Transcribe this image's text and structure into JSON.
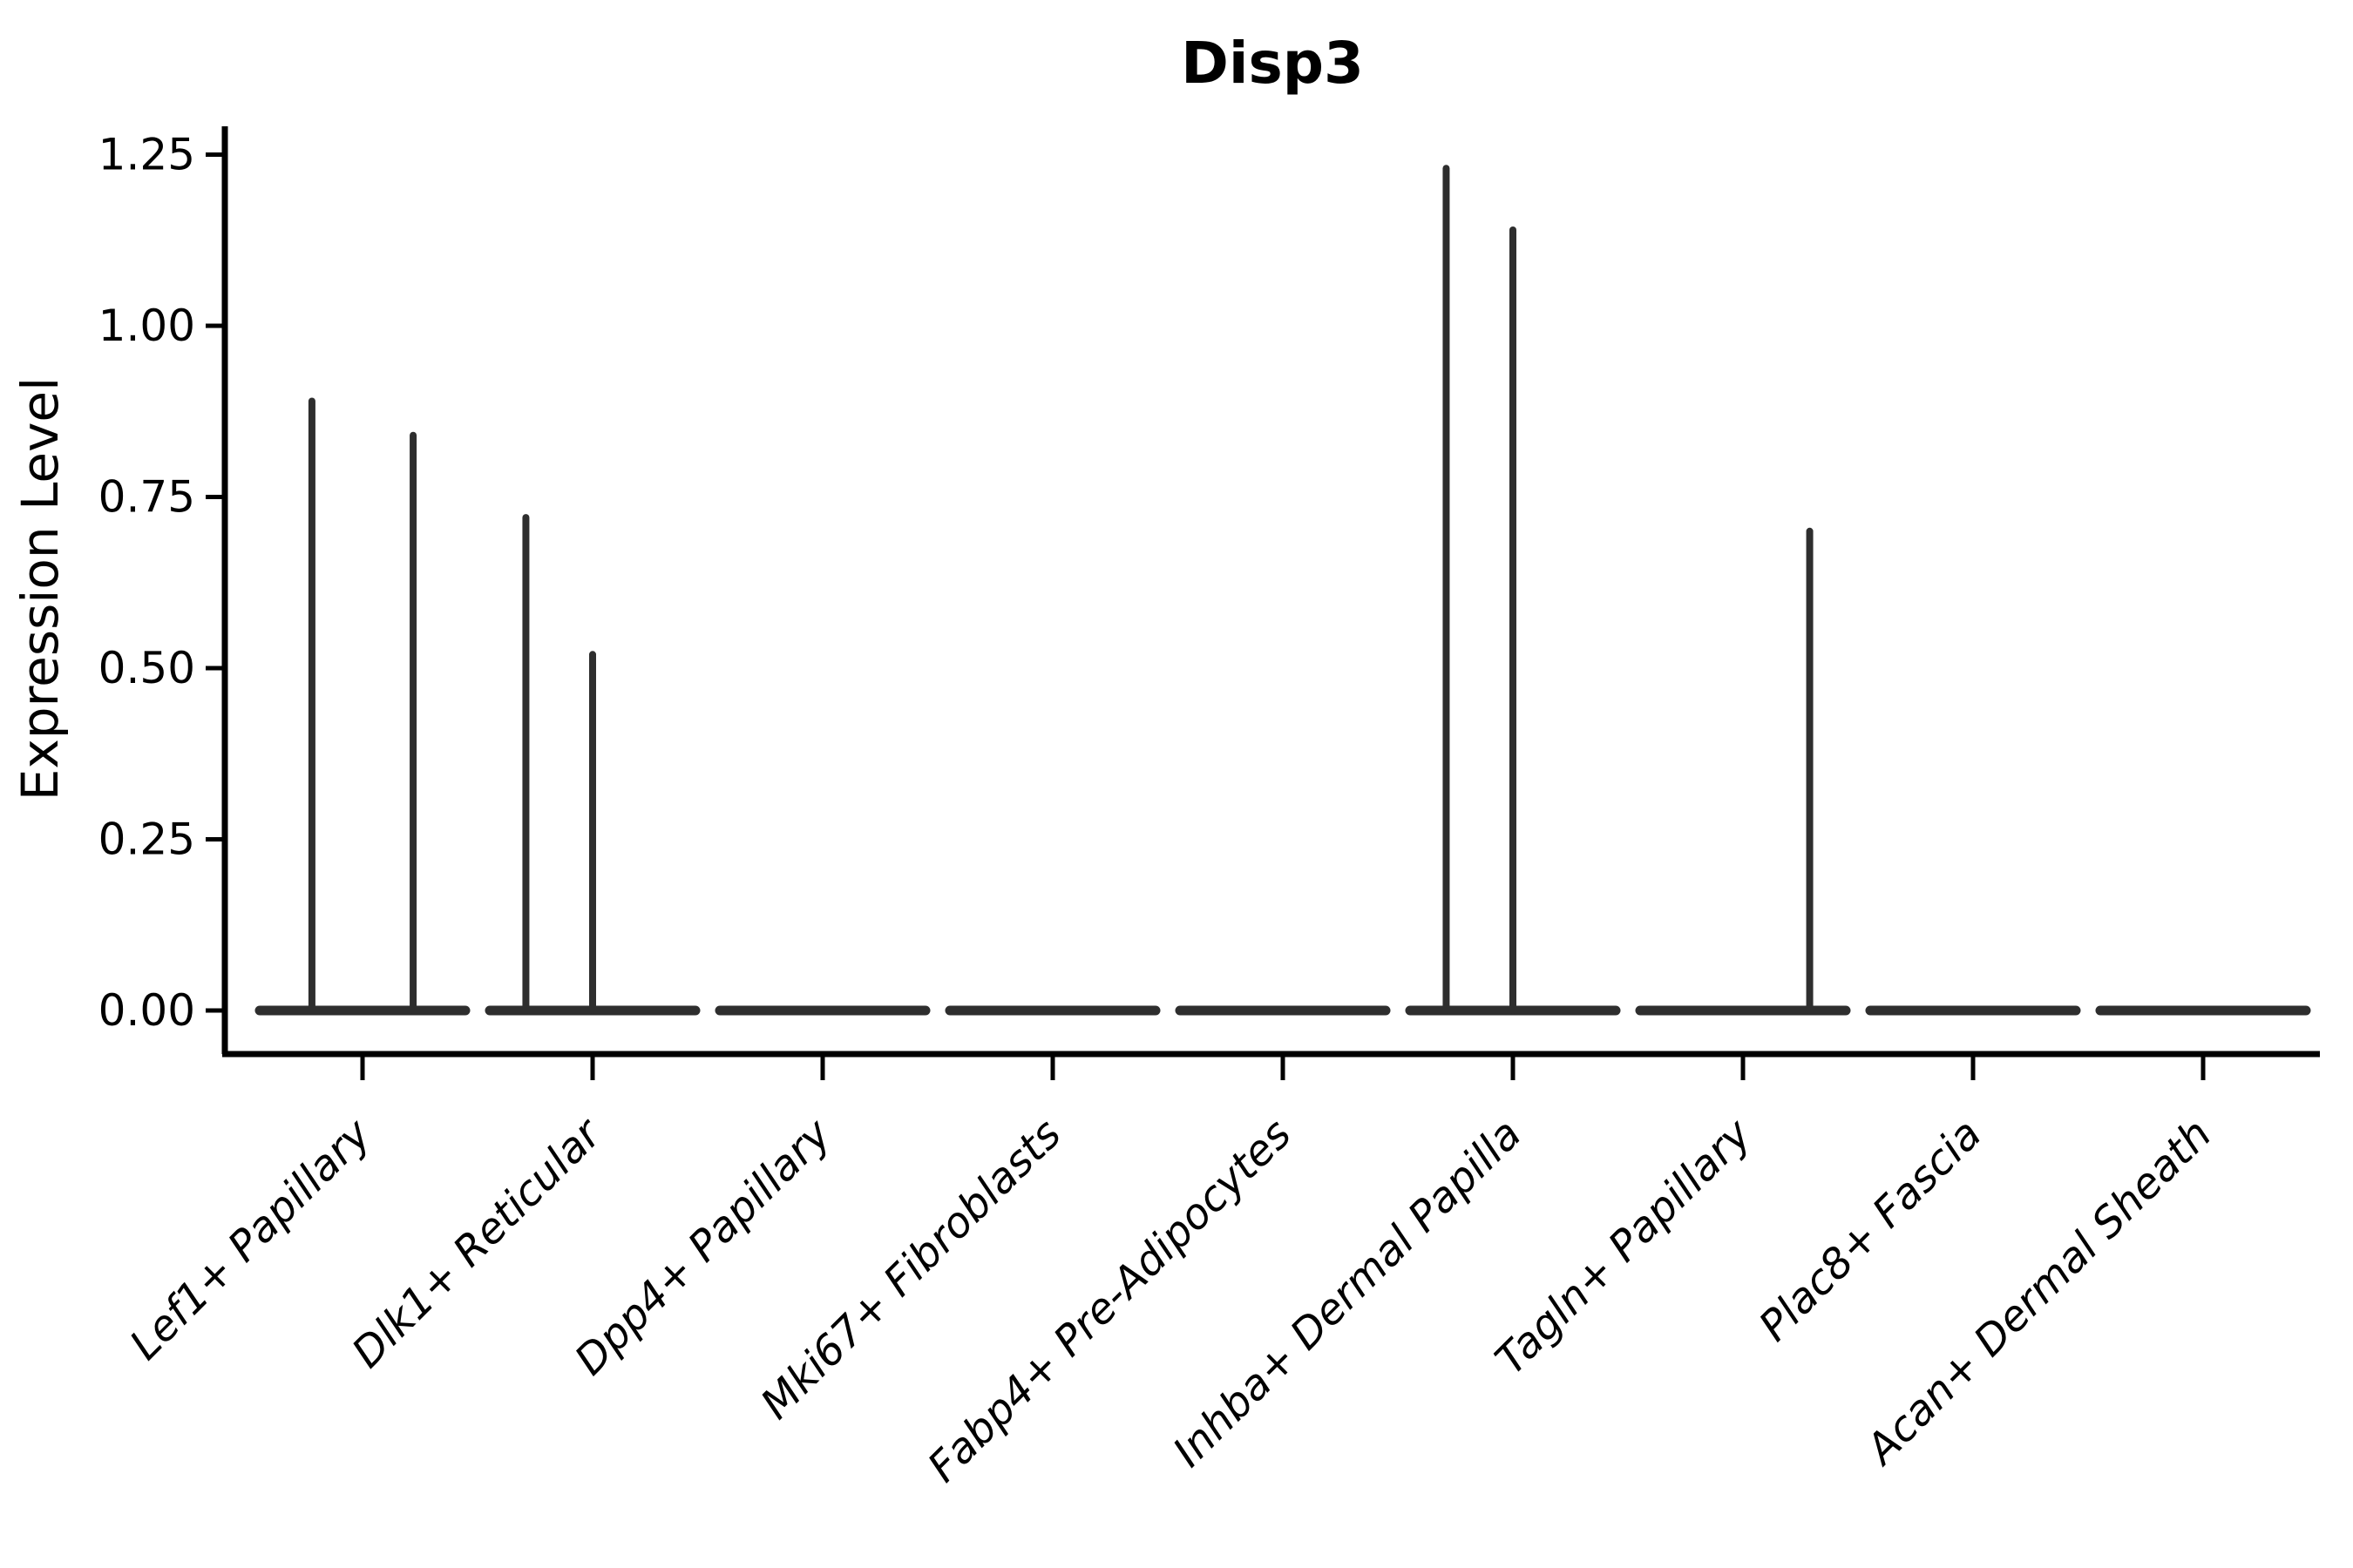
{
  "chart_data": {
    "type": "violin",
    "title": "Disp3",
    "ylabel": "Expression Level",
    "xlabel": "",
    "ylim": [
      0,
      1.3
    ],
    "grid": false,
    "legend_position": "none",
    "yticks": [
      {
        "value": 0.0,
        "label": "0.00"
      },
      {
        "value": 0.25,
        "label": "0.25"
      },
      {
        "value": 0.5,
        "label": "0.50"
      },
      {
        "value": 0.75,
        "label": "0.75"
      },
      {
        "value": 1.0,
        "label": "1.00"
      },
      {
        "value": 1.25,
        "label": "1.25"
      }
    ],
    "categories": [
      "Lef1+ Papillary",
      "Dlk1+ Reticular",
      "Dpp4+ Papillary",
      "Mki67+ Fibroblasts",
      "Fabp4+ Pre-Adipocytes",
      "Inhba+ Dermal Papilla",
      "Tagln+ Papillary",
      "Plac8+ Fascia",
      "Acan+ Dermal Sheath"
    ],
    "violins": [
      {
        "category": "Lef1+ Papillary",
        "baseline": 0,
        "spikes": [
          {
            "x_offset": -0.22,
            "value": 0.89
          },
          {
            "x_offset": 0.22,
            "value": 0.84
          }
        ]
      },
      {
        "category": "Dlk1+ Reticular",
        "baseline": 0,
        "spikes": [
          {
            "x_offset": -0.29,
            "value": 0.72
          },
          {
            "x_offset": 0.0,
            "value": 0.52
          }
        ]
      },
      {
        "category": "Dpp4+ Papillary",
        "baseline": 0,
        "spikes": []
      },
      {
        "category": "Mki67+ Fibroblasts",
        "baseline": 0,
        "spikes": []
      },
      {
        "category": "Fabp4+ Pre-Adipocytes",
        "baseline": 0,
        "spikes": []
      },
      {
        "category": "Inhba+ Dermal Papilla",
        "baseline": 0,
        "spikes": [
          {
            "x_offset": -0.29,
            "value": 1.23
          },
          {
            "x_offset": 0.0,
            "value": 1.14
          }
        ]
      },
      {
        "category": "Tagln+ Papillary",
        "baseline": 0,
        "spikes": [
          {
            "x_offset": 0.29,
            "value": 0.7
          }
        ]
      },
      {
        "category": "Plac8+ Fascia",
        "baseline": 0,
        "spikes": []
      },
      {
        "category": "Acan+ Dermal Sheath",
        "baseline": 0,
        "spikes": []
      }
    ],
    "colors": {
      "violin": "#2e2e2e",
      "axis": "#000000",
      "text": "#000000",
      "background": "#ffffff"
    }
  }
}
